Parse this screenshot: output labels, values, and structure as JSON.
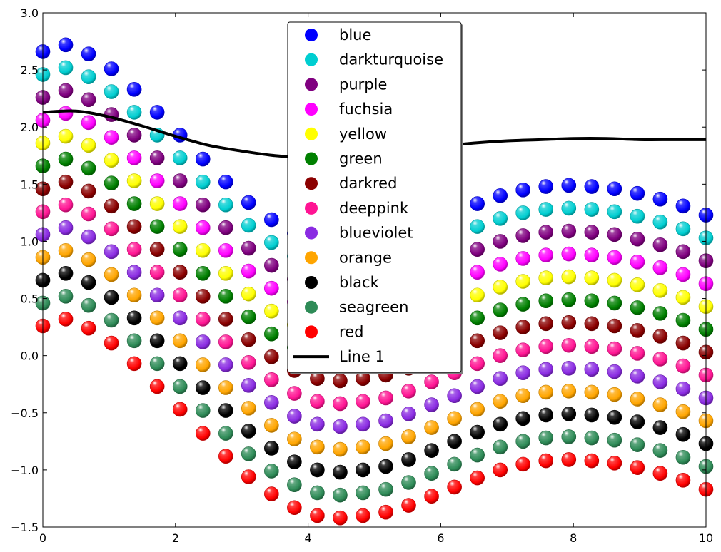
{
  "chart_data": {
    "type": "scatter",
    "title": "",
    "xlabel": "",
    "ylabel": "",
    "xlim": [
      0,
      10
    ],
    "ylim": [
      -1.5,
      3.0
    ],
    "grid": false,
    "legend_placement": "upper center",
    "x_ticks": [
      0,
      2,
      4,
      6,
      8,
      10
    ],
    "x_tick_labels": [
      "0",
      "2",
      "4",
      "6",
      "8",
      "10"
    ],
    "y_ticks": [
      -1.5,
      -1.0,
      -0.5,
      0.0,
      0.5,
      1.0,
      1.5,
      2.0,
      2.5,
      3.0
    ],
    "y_tick_labels": [
      "−1.5",
      "−1.0",
      "−0.5",
      "0.0",
      "0.5",
      "1.0",
      "1.5",
      "2.0",
      "2.5",
      "3.0"
    ],
    "x": [
      0.0,
      0.345,
      0.69,
      1.034,
      1.379,
      1.724,
      2.069,
      2.414,
      2.759,
      3.103,
      3.448,
      3.793,
      4.138,
      4.483,
      4.828,
      5.172,
      5.517,
      5.862,
      6.207,
      6.552,
      6.897,
      7.241,
      7.586,
      7.931,
      8.276,
      8.621,
      8.966,
      9.31,
      9.655,
      10.0
    ],
    "base_curve": {
      "description_values": "y of the red (lowest) series; each series above is offset by +0.2",
      "y": [
        0.26,
        0.32,
        0.24,
        0.11,
        -0.07,
        -0.27,
        -0.47,
        -0.68,
        -0.88,
        -1.06,
        -1.21,
        -1.33,
        -1.4,
        -1.42,
        -1.4,
        -1.37,
        -1.31,
        -1.23,
        -1.15,
        -1.07,
        -1.0,
        -0.95,
        -0.92,
        -0.91,
        -0.92,
        -0.94,
        -0.98,
        -1.03,
        -1.09,
        -1.17
      ]
    },
    "series": [
      {
        "name": "blue",
        "color": "#0000ff",
        "offset": 2.4
      },
      {
        "name": "darkturquoise",
        "color": "#00ced1",
        "offset": 2.2
      },
      {
        "name": "purple",
        "color": "#800080",
        "offset": 2.0
      },
      {
        "name": "fuchsia",
        "color": "#ff00ff",
        "offset": 1.8
      },
      {
        "name": "yellow",
        "color": "#ffff00",
        "offset": 1.6
      },
      {
        "name": "green",
        "color": "#008000",
        "offset": 1.4
      },
      {
        "name": "darkred",
        "color": "#8b0000",
        "offset": 1.2
      },
      {
        "name": "deeppink",
        "color": "#ff1493",
        "offset": 1.0
      },
      {
        "name": "blueviolet",
        "color": "#8a2be2",
        "offset": 0.8
      },
      {
        "name": "orange",
        "color": "#ffa500",
        "offset": 0.6
      },
      {
        "name": "black",
        "color": "#000000",
        "offset": 0.4
      },
      {
        "name": "seagreen",
        "color": "#2e8b57",
        "offset": 0.2
      },
      {
        "name": "red",
        "color": "#ff0000",
        "offset": 0.0
      }
    ],
    "line": {
      "name": "Line 1",
      "color": "#000000",
      "x": [
        0,
        0.5,
        1,
        1.5,
        2,
        2.5,
        3,
        3.5,
        4,
        4.5,
        5,
        5.5,
        6,
        6.5,
        7,
        7.5,
        8,
        8.5,
        9,
        9.5,
        10
      ],
      "y": [
        2.13,
        2.14,
        2.09,
        2.01,
        1.92,
        1.84,
        1.79,
        1.75,
        1.73,
        1.73,
        1.75,
        1.79,
        1.83,
        1.86,
        1.88,
        1.89,
        1.9,
        1.9,
        1.89,
        1.89,
        1.89
      ]
    }
  }
}
